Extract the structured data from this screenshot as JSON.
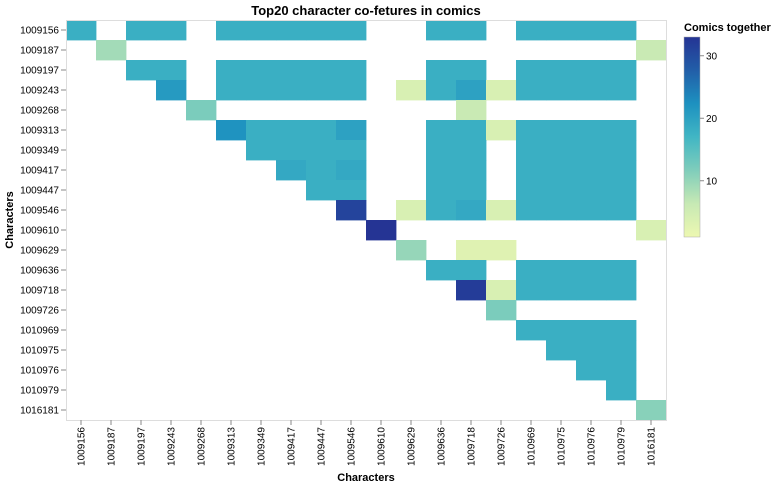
{
  "chart_data": {
    "type": "heatmap",
    "title": "Top20 character co-fetures in comics",
    "xlabel": "Characters",
    "ylabel": "Characters",
    "characters": [
      "1009156",
      "1009187",
      "1009197",
      "1009243",
      "1009268",
      "1009313",
      "1009349",
      "1009417",
      "1009447",
      "1009546",
      "1009610",
      "1009629",
      "1009636",
      "1009718",
      "1009726",
      "1010969",
      "1010975",
      "1010976",
      "1010979",
      "1016181"
    ],
    "cells": [
      {
        "x": "1009156",
        "y": "1009156",
        "value": 18
      },
      {
        "x": "1009197",
        "y": "1009156",
        "value": 18
      },
      {
        "x": "1009243",
        "y": "1009156",
        "value": 18
      },
      {
        "x": "1009313",
        "y": "1009156",
        "value": 18
      },
      {
        "x": "1009349",
        "y": "1009156",
        "value": 18
      },
      {
        "x": "1009417",
        "y": "1009156",
        "value": 18
      },
      {
        "x": "1009447",
        "y": "1009156",
        "value": 18
      },
      {
        "x": "1009546",
        "y": "1009156",
        "value": 18
      },
      {
        "x": "1009636",
        "y": "1009156",
        "value": 18
      },
      {
        "x": "1009718",
        "y": "1009156",
        "value": 18
      },
      {
        "x": "1010969",
        "y": "1009156",
        "value": 18
      },
      {
        "x": "1010975",
        "y": "1009156",
        "value": 18
      },
      {
        "x": "1010976",
        "y": "1009156",
        "value": 18
      },
      {
        "x": "1010979",
        "y": "1009156",
        "value": 18
      },
      {
        "x": "1009187",
        "y": "1009187",
        "value": 9
      },
      {
        "x": "1016181",
        "y": "1009187",
        "value": 6
      },
      {
        "x": "1009197",
        "y": "1009197",
        "value": 18
      },
      {
        "x": "1009243",
        "y": "1009197",
        "value": 18
      },
      {
        "x": "1009313",
        "y": "1009197",
        "value": 18
      },
      {
        "x": "1009349",
        "y": "1009197",
        "value": 18
      },
      {
        "x": "1009417",
        "y": "1009197",
        "value": 18
      },
      {
        "x": "1009447",
        "y": "1009197",
        "value": 18
      },
      {
        "x": "1009546",
        "y": "1009197",
        "value": 18
      },
      {
        "x": "1009636",
        "y": "1009197",
        "value": 18
      },
      {
        "x": "1009718",
        "y": "1009197",
        "value": 18
      },
      {
        "x": "1010969",
        "y": "1009197",
        "value": 18
      },
      {
        "x": "1010975",
        "y": "1009197",
        "value": 18
      },
      {
        "x": "1010976",
        "y": "1009197",
        "value": 18
      },
      {
        "x": "1010979",
        "y": "1009197",
        "value": 18
      },
      {
        "x": "1009243",
        "y": "1009243",
        "value": 21
      },
      {
        "x": "1009313",
        "y": "1009243",
        "value": 18
      },
      {
        "x": "1009349",
        "y": "1009243",
        "value": 18
      },
      {
        "x": "1009417",
        "y": "1009243",
        "value": 18
      },
      {
        "x": "1009447",
        "y": "1009243",
        "value": 18
      },
      {
        "x": "1009546",
        "y": "1009243",
        "value": 18
      },
      {
        "x": "1009629",
        "y": "1009243",
        "value": 4
      },
      {
        "x": "1009636",
        "y": "1009243",
        "value": 18
      },
      {
        "x": "1009718",
        "y": "1009243",
        "value": 20
      },
      {
        "x": "1009726",
        "y": "1009243",
        "value": 4
      },
      {
        "x": "1010969",
        "y": "1009243",
        "value": 18
      },
      {
        "x": "1010975",
        "y": "1009243",
        "value": 18
      },
      {
        "x": "1010976",
        "y": "1009243",
        "value": 18
      },
      {
        "x": "1010979",
        "y": "1009243",
        "value": 18
      },
      {
        "x": "1009268",
        "y": "1009268",
        "value": 12
      },
      {
        "x": "1009718",
        "y": "1009268",
        "value": 6
      },
      {
        "x": "1009313",
        "y": "1009313",
        "value": 22
      },
      {
        "x": "1009349",
        "y": "1009313",
        "value": 18
      },
      {
        "x": "1009417",
        "y": "1009313",
        "value": 18
      },
      {
        "x": "1009447",
        "y": "1009313",
        "value": 18
      },
      {
        "x": "1009546",
        "y": "1009313",
        "value": 20
      },
      {
        "x": "1009636",
        "y": "1009313",
        "value": 18
      },
      {
        "x": "1009718",
        "y": "1009313",
        "value": 18
      },
      {
        "x": "1009726",
        "y": "1009313",
        "value": 4
      },
      {
        "x": "1010969",
        "y": "1009313",
        "value": 18
      },
      {
        "x": "1010975",
        "y": "1009313",
        "value": 18
      },
      {
        "x": "1010976",
        "y": "1009313",
        "value": 18
      },
      {
        "x": "1010979",
        "y": "1009313",
        "value": 18
      },
      {
        "x": "1009349",
        "y": "1009349",
        "value": 18
      },
      {
        "x": "1009417",
        "y": "1009349",
        "value": 18
      },
      {
        "x": "1009447",
        "y": "1009349",
        "value": 18
      },
      {
        "x": "1009546",
        "y": "1009349",
        "value": 18
      },
      {
        "x": "1009636",
        "y": "1009349",
        "value": 18
      },
      {
        "x": "1009718",
        "y": "1009349",
        "value": 18
      },
      {
        "x": "1010969",
        "y": "1009349",
        "value": 18
      },
      {
        "x": "1010975",
        "y": "1009349",
        "value": 18
      },
      {
        "x": "1010976",
        "y": "1009349",
        "value": 18
      },
      {
        "x": "1010979",
        "y": "1009349",
        "value": 18
      },
      {
        "x": "1009417",
        "y": "1009417",
        "value": 19
      },
      {
        "x": "1009447",
        "y": "1009417",
        "value": 18
      },
      {
        "x": "1009546",
        "y": "1009417",
        "value": 19
      },
      {
        "x": "1009636",
        "y": "1009417",
        "value": 18
      },
      {
        "x": "1009718",
        "y": "1009417",
        "value": 18
      },
      {
        "x": "1010969",
        "y": "1009417",
        "value": 18
      },
      {
        "x": "1010975",
        "y": "1009417",
        "value": 18
      },
      {
        "x": "1010976",
        "y": "1009417",
        "value": 18
      },
      {
        "x": "1010979",
        "y": "1009417",
        "value": 18
      },
      {
        "x": "1009447",
        "y": "1009447",
        "value": 18
      },
      {
        "x": "1009546",
        "y": "1009447",
        "value": 18
      },
      {
        "x": "1009636",
        "y": "1009447",
        "value": 18
      },
      {
        "x": "1009718",
        "y": "1009447",
        "value": 18
      },
      {
        "x": "1010969",
        "y": "1009447",
        "value": 18
      },
      {
        "x": "1010975",
        "y": "1009447",
        "value": 18
      },
      {
        "x": "1010976",
        "y": "1009447",
        "value": 18
      },
      {
        "x": "1010979",
        "y": "1009447",
        "value": 18
      },
      {
        "x": "1009546",
        "y": "1009546",
        "value": 31
      },
      {
        "x": "1009629",
        "y": "1009546",
        "value": 4
      },
      {
        "x": "1009636",
        "y": "1009546",
        "value": 18
      },
      {
        "x": "1009718",
        "y": "1009546",
        "value": 19
      },
      {
        "x": "1009726",
        "y": "1009546",
        "value": 4
      },
      {
        "x": "1010969",
        "y": "1009546",
        "value": 18
      },
      {
        "x": "1010975",
        "y": "1009546",
        "value": 18
      },
      {
        "x": "1010976",
        "y": "1009546",
        "value": 18
      },
      {
        "x": "1010979",
        "y": "1009546",
        "value": 18
      },
      {
        "x": "1009610",
        "y": "1009610",
        "value": 33
      },
      {
        "x": "1016181",
        "y": "1009610",
        "value": 4
      },
      {
        "x": "1009629",
        "y": "1009629",
        "value": 10
      },
      {
        "x": "1009718",
        "y": "1009629",
        "value": 3
      },
      {
        "x": "1009726",
        "y": "1009629",
        "value": 3
      },
      {
        "x": "1009636",
        "y": "1009636",
        "value": 18
      },
      {
        "x": "1009718",
        "y": "1009636",
        "value": 18
      },
      {
        "x": "1010969",
        "y": "1009636",
        "value": 18
      },
      {
        "x": "1010975",
        "y": "1009636",
        "value": 18
      },
      {
        "x": "1010976",
        "y": "1009636",
        "value": 18
      },
      {
        "x": "1010979",
        "y": "1009636",
        "value": 18
      },
      {
        "x": "1009718",
        "y": "1009718",
        "value": 32
      },
      {
        "x": "1009726",
        "y": "1009718",
        "value": 4
      },
      {
        "x": "1010969",
        "y": "1009718",
        "value": 18
      },
      {
        "x": "1010975",
        "y": "1009718",
        "value": 18
      },
      {
        "x": "1010976",
        "y": "1009718",
        "value": 18
      },
      {
        "x": "1010979",
        "y": "1009718",
        "value": 18
      },
      {
        "x": "1009726",
        "y": "1009726",
        "value": 12
      },
      {
        "x": "1010969",
        "y": "1010969",
        "value": 18
      },
      {
        "x": "1010975",
        "y": "1010969",
        "value": 18
      },
      {
        "x": "1010976",
        "y": "1010969",
        "value": 18
      },
      {
        "x": "1010979",
        "y": "1010969",
        "value": 18
      },
      {
        "x": "1010975",
        "y": "1010975",
        "value": 18
      },
      {
        "x": "1010976",
        "y": "1010975",
        "value": 18
      },
      {
        "x": "1010979",
        "y": "1010975",
        "value": 18
      },
      {
        "x": "1010976",
        "y": "1010976",
        "value": 18
      },
      {
        "x": "1010979",
        "y": "1010976",
        "value": 18
      },
      {
        "x": "1010979",
        "y": "1010979",
        "value": 18
      },
      {
        "x": "1016181",
        "y": "1016181",
        "value": 11
      }
    ],
    "legend": {
      "title": "Comics together",
      "ticks": [
        10,
        20,
        30
      ],
      "domain": [
        1,
        33
      ],
      "placement": "right",
      "colors": [
        "#edf8b1",
        "#c7e9b4",
        "#7fcdbb",
        "#41b6c4",
        "#1d91c0",
        "#225ea8",
        "#253494"
      ]
    },
    "grid": false
  }
}
